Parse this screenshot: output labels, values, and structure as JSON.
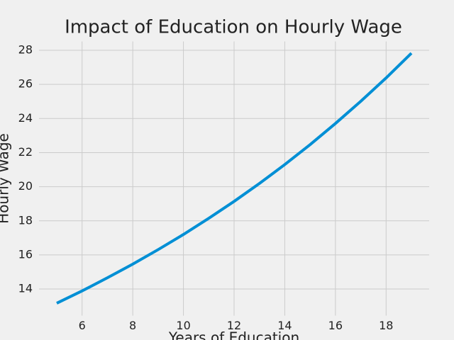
{
  "chart_data": {
    "type": "line",
    "title": "Impact of Education on Hourly Wage",
    "xlabel": "Years of Education",
    "ylabel": "Hourly Wage",
    "x": [
      5,
      6,
      7,
      8,
      9,
      10,
      11,
      12,
      13,
      14,
      15,
      16,
      17,
      18,
      19
    ],
    "series": [
      {
        "name": "Hourly Wage",
        "color": "#008fd5",
        "values": [
          13.17,
          13.89,
          14.66,
          15.46,
          16.31,
          17.2,
          18.15,
          19.14,
          20.19,
          21.3,
          22.47,
          23.71,
          25.01,
          26.38,
          27.83
        ]
      }
    ],
    "xlim": [
      4.3,
      19.7
    ],
    "ylim": [
      12.44,
      28.52
    ],
    "xticks": [
      6,
      8,
      10,
      12,
      14,
      16,
      18
    ],
    "yticks": [
      14,
      16,
      18,
      20,
      22,
      24,
      26,
      28
    ],
    "grid": true
  }
}
